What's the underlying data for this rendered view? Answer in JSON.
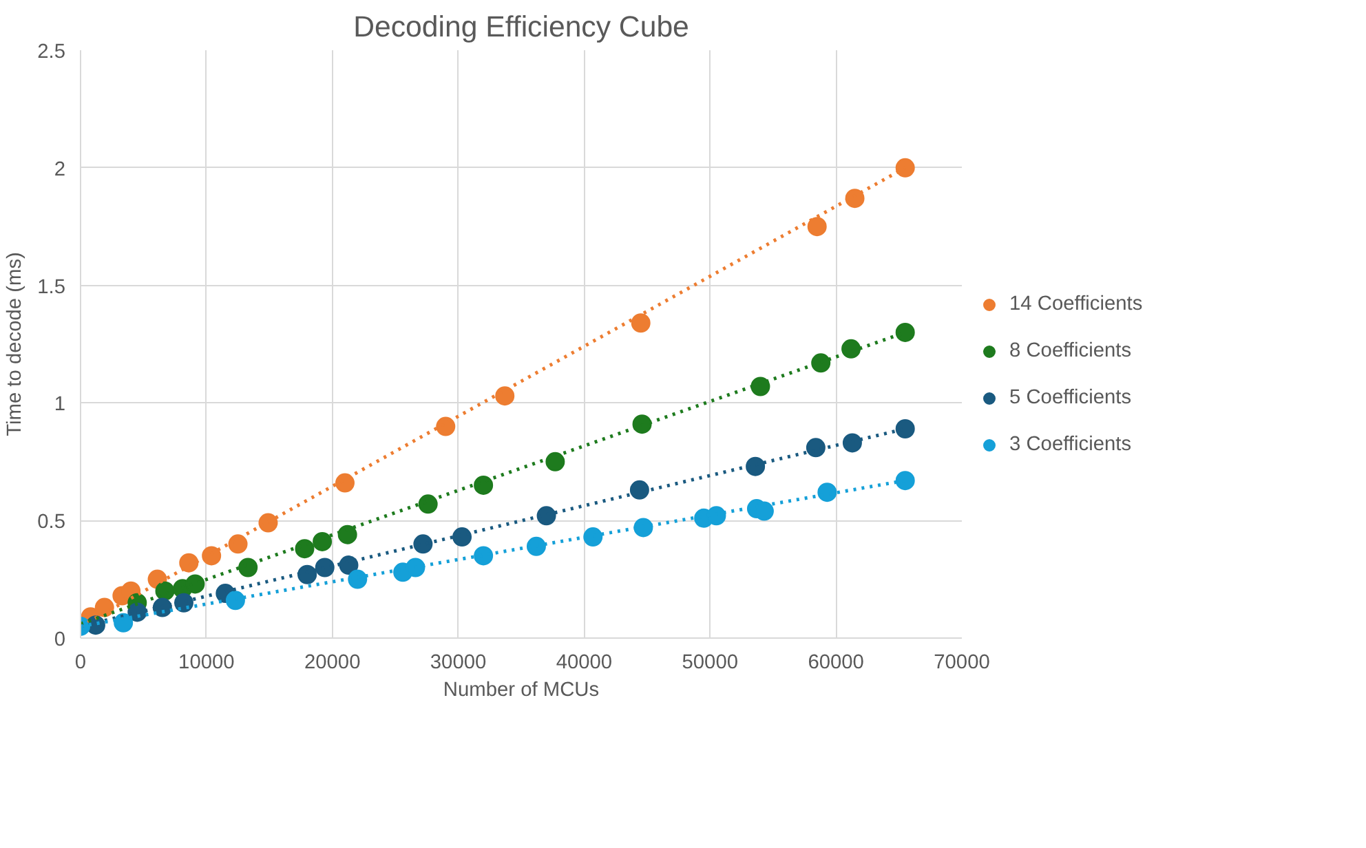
{
  "chart_data": {
    "type": "scatter",
    "title": "Decoding Efficiency Cube",
    "xlabel": "Number of MCUs",
    "ylabel": "Time to decode (ms)",
    "xlim": [
      0,
      70000
    ],
    "xticks": [
      0,
      10000,
      20000,
      30000,
      40000,
      50000,
      60000,
      70000
    ],
    "ylim": [
      0,
      2.5
    ],
    "yticks": [
      0,
      0.5,
      1,
      1.5,
      2,
      2.5
    ],
    "grid": true,
    "legend": "right",
    "marker": "circle",
    "series": [
      {
        "name": "14 Coefficients",
        "color": "#ed7d31",
        "x": [
          800,
          1900,
          3300,
          4000,
          6100,
          8600,
          10400,
          12500,
          14900,
          21000,
          29000,
          33700,
          44500,
          58500,
          61500,
          65500
        ],
        "values": [
          0.09,
          0.13,
          0.18,
          0.2,
          0.25,
          0.32,
          0.35,
          0.4,
          0.49,
          0.66,
          0.9,
          1.03,
          1.34,
          1.75,
          1.87,
          2.0
        ]
      },
      {
        "name": "8 Coefficients",
        "color": "#1e7b1e",
        "x": [
          4500,
          6700,
          8100,
          9100,
          13300,
          17800,
          19200,
          21200,
          27600,
          32000,
          37700,
          44600,
          54000,
          58800,
          61200,
          65500
        ],
        "values": [
          0.15,
          0.2,
          0.21,
          0.23,
          0.3,
          0.38,
          0.41,
          0.44,
          0.57,
          0.65,
          0.75,
          0.91,
          1.07,
          1.17,
          1.23,
          1.3
        ]
      },
      {
        "name": "5 Coefficients",
        "color": "#1a5a80",
        "x": [
          1200,
          4500,
          6500,
          8200,
          11500,
          18000,
          19400,
          21300,
          27200,
          30300,
          37000,
          44400,
          53600,
          58400,
          61300,
          65500
        ],
        "values": [
          0.055,
          0.11,
          0.13,
          0.15,
          0.19,
          0.27,
          0.3,
          0.31,
          0.4,
          0.43,
          0.52,
          0.63,
          0.73,
          0.81,
          0.83,
          0.89
        ]
      },
      {
        "name": "3 Coefficients",
        "color": "#15a0d8",
        "x": [
          0,
          3400,
          12300,
          22000,
          25600,
          26600,
          32000,
          36200,
          40700,
          44700,
          49500,
          50500,
          53700,
          54300,
          59300,
          65500
        ],
        "values": [
          0.05,
          0.065,
          0.16,
          0.25,
          0.28,
          0.3,
          0.35,
          0.39,
          0.43,
          0.47,
          0.51,
          0.52,
          0.55,
          0.54,
          0.62,
          0.67
        ]
      },
      {
        "type": "line",
        "line_style": "dotted",
        "marker": "none",
        "color": "#ed7d31",
        "x": [
          0,
          65500
        ],
        "values": [
          0.05,
          2.0
        ]
      },
      {
        "type": "line",
        "line_style": "dotted",
        "marker": "none",
        "color": "#1e7b1e",
        "x": [
          0,
          65500
        ],
        "values": [
          0.06,
          1.3
        ]
      },
      {
        "type": "line",
        "line_style": "dotted",
        "marker": "none",
        "color": "#1a5a80",
        "x": [
          0,
          65500
        ],
        "values": [
          0.05,
          0.89
        ]
      },
      {
        "type": "line",
        "line_style": "dotted",
        "marker": "none",
        "color": "#15a0d8",
        "x": [
          0,
          65500
        ],
        "values": [
          0.05,
          0.67
        ]
      }
    ]
  }
}
